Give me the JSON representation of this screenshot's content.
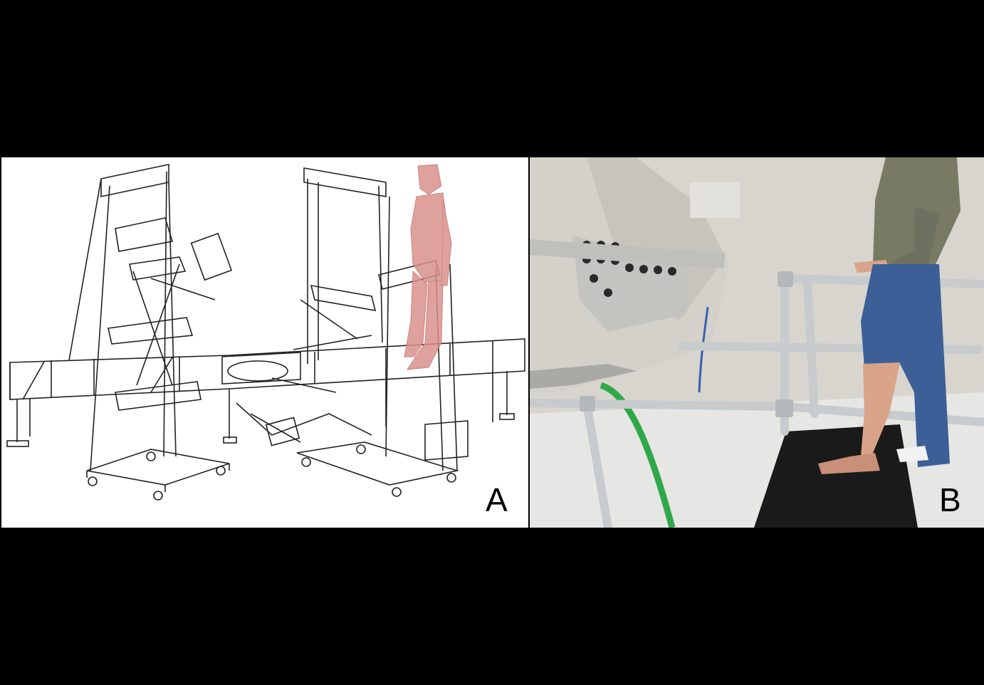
{
  "panels": {
    "a": {
      "label": "A"
    },
    "b": {
      "label": "B"
    }
  },
  "colors": {
    "background": "#000000",
    "drawing_bg": "#ffffff",
    "line": "#222222",
    "figure": "#d9918c",
    "wall": "#d8d5cf",
    "floor": "#e6e6e4",
    "plate": "#1a1a1a",
    "pipe": "#c7cbcd",
    "cable": "#2fa84a",
    "jeans": "#3d5f97",
    "sweater": "#787a64",
    "skin": "#d9a38a"
  }
}
